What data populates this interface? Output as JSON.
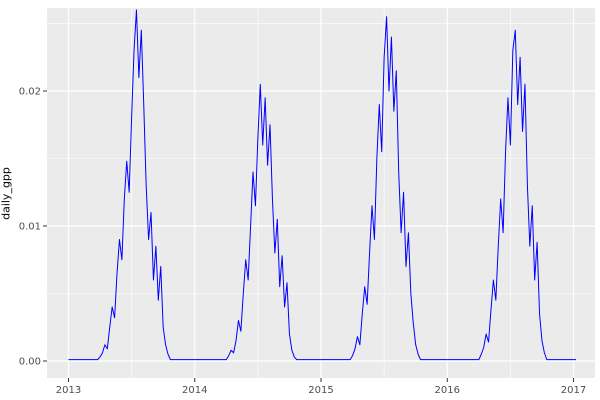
{
  "chart_data": {
    "type": "line",
    "title": "",
    "xlabel": "",
    "ylabel": "daily_gpp",
    "legend": "none",
    "grid": "on",
    "theme": "ggplot-gray",
    "colors": {
      "line": "#0000FF",
      "panel_bg": "#EBEBEB",
      "grid_major": "#FFFFFF",
      "grid_minor": "#FFFFFF",
      "axis_text": "#4D4D4D",
      "tick_mark": "#333333",
      "outer_bg": "#FFFFFF"
    },
    "xlim": [
      2012.83,
      2017.17
    ],
    "ylim": [
      -0.00126,
      0.02615
    ],
    "x_ticks": [
      2013,
      2014,
      2015,
      2016,
      2017
    ],
    "x_tick_labels": [
      "2013",
      "2014",
      "2015",
      "2016",
      "2017"
    ],
    "x_minor": [
      2013.5,
      2014.5,
      2015.5,
      2016.5
    ],
    "y_ticks": [
      0,
      0.01,
      0.02
    ],
    "y_tick_labels": [
      "0.00",
      "0.01",
      "0.02"
    ],
    "y_minor": [
      0.005,
      0.015,
      0.025
    ],
    "x_start": 2013.0,
    "x_step": 0.01923077,
    "values": [
      0.0001,
      0.0001,
      0.0001,
      0.0001,
      0.0001,
      0.0001,
      0.0001,
      0.0001,
      0.0001,
      0.0001,
      0.0001,
      0.0001,
      0.0001,
      0.0003,
      0.0006,
      0.0012,
      0.0009,
      0.0025,
      0.004,
      0.0032,
      0.0065,
      0.009,
      0.0075,
      0.012,
      0.0148,
      0.0125,
      0.018,
      0.023,
      0.026,
      0.021,
      0.0245,
      0.019,
      0.013,
      0.009,
      0.011,
      0.006,
      0.0085,
      0.0045,
      0.007,
      0.0025,
      0.0012,
      0.0005,
      0.0001,
      0.0001,
      0.0001,
      0.0001,
      0.0001,
      0.0001,
      0.0001,
      0.0001,
      0.0001,
      0.0001,
      0.0001,
      0.0001,
      0.0001,
      0.0001,
      0.0001,
      0.0001,
      0.0001,
      0.0001,
      0.0001,
      0.0001,
      0.0001,
      0.0001,
      0.0001,
      0.0001,
      0.0004,
      0.0008,
      0.0006,
      0.0015,
      0.003,
      0.0022,
      0.005,
      0.0075,
      0.006,
      0.01,
      0.014,
      0.0115,
      0.0165,
      0.0205,
      0.016,
      0.0195,
      0.0145,
      0.0175,
      0.012,
      0.008,
      0.0105,
      0.0055,
      0.0078,
      0.004,
      0.0058,
      0.002,
      0.0008,
      0.0003,
      0.0001,
      0.0001,
      0.0001,
      0.0001,
      0.0001,
      0.0001,
      0.0001,
      0.0001,
      0.0001,
      0.0001,
      0.0001,
      0.0001,
      0.0001,
      0.0001,
      0.0001,
      0.0001,
      0.0001,
      0.0001,
      0.0001,
      0.0001,
      0.0001,
      0.0001,
      0.0001,
      0.0004,
      0.0009,
      0.0018,
      0.0012,
      0.0035,
      0.0055,
      0.0042,
      0.008,
      0.0115,
      0.009,
      0.015,
      0.019,
      0.0155,
      0.0225,
      0.0255,
      0.02,
      0.024,
      0.0185,
      0.0215,
      0.014,
      0.0095,
      0.0125,
      0.007,
      0.0095,
      0.005,
      0.0028,
      0.0012,
      0.0005,
      0.0001,
      0.0001,
      0.0001,
      0.0001,
      0.0001,
      0.0001,
      0.0001,
      0.0001,
      0.0001,
      0.0001,
      0.0001,
      0.0001,
      0.0001,
      0.0001,
      0.0001,
      0.0001,
      0.0001,
      0.0001,
      0.0001,
      0.0001,
      0.0001,
      0.0001,
      0.0001,
      0.0001,
      0.0001,
      0.0005,
      0.001,
      0.002,
      0.0014,
      0.0038,
      0.006,
      0.0045,
      0.0085,
      0.012,
      0.0095,
      0.0155,
      0.0195,
      0.016,
      0.023,
      0.0245,
      0.019,
      0.0225,
      0.017,
      0.0205,
      0.013,
      0.0085,
      0.0115,
      0.006,
      0.0088,
      0.0035,
      0.0015,
      0.0006,
      0.0001,
      0.0001,
      0.0001,
      0.0001,
      0.0001,
      0.0001,
      0.0001,
      0.0001,
      0.0001,
      0.0001,
      0.0001,
      0.0001,
      0.0001
    ]
  }
}
